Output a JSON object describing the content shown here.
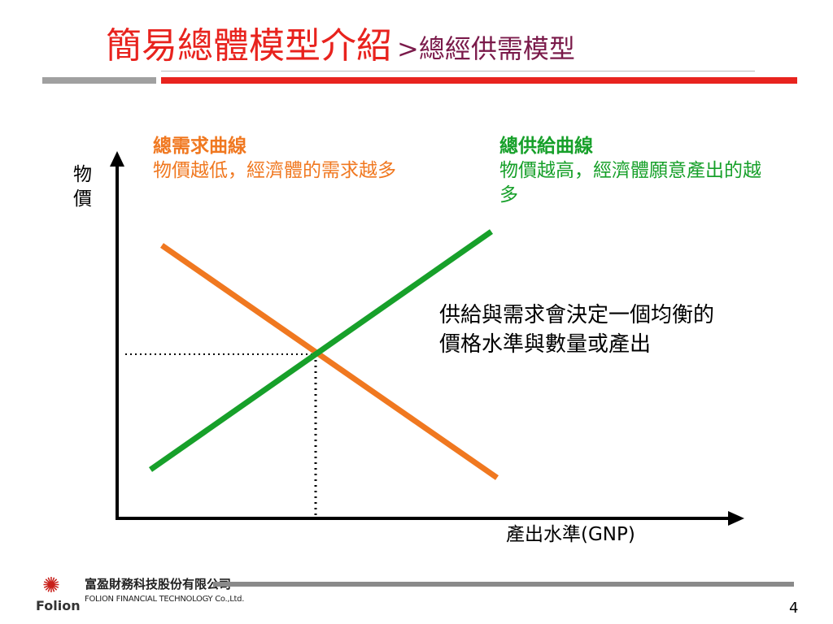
{
  "slide": {
    "title_main": "簡易總體模型介紹",
    "title_sub": ">總經供需模型",
    "page_number": "4"
  },
  "diagram": {
    "y_axis_label": "物價",
    "x_axis_label": "產出水準(GNP)",
    "demand": {
      "heading": "總需求曲線",
      "description": "物價越低，經濟體的需求越多",
      "color": "#f07820"
    },
    "supply": {
      "heading": "總供給曲線",
      "description": "物價越高，經濟體願意產出的越多",
      "color": "#17a02a"
    },
    "equilibrium_note": "供給與需求會決定一個均衡的價格水準與數量或產出"
  },
  "footer": {
    "company_cn": "富盈財務科技股份有限公司",
    "company_en": "FOLION FINANCIAL TECHNOLOGY Co.,Ltd.",
    "brand": "Folion"
  }
}
